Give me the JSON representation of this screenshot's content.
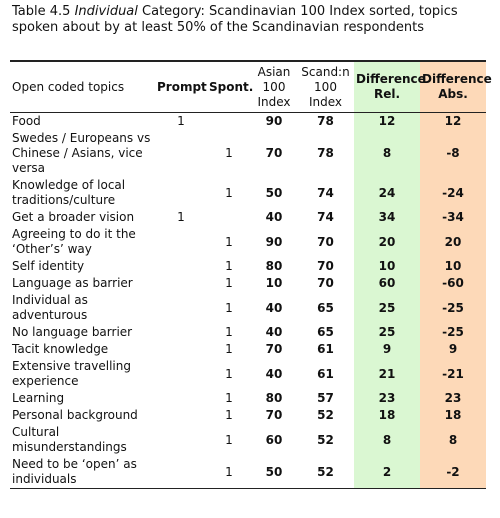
{
  "caption": {
    "label": "Table 4.5",
    "italic": "Individual",
    "text": "Category: Scandinavian 100 Index sorted, topics spoken about by at least 50% of the Scandinavian respondents"
  },
  "table": {
    "header": [
      "Open coded topics",
      "Prompt",
      "Spont.",
      "Asian 100 Index",
      "Scand:n 100 Index",
      "Difference Rel.",
      "Difference Abs."
    ],
    "rows": [
      [
        "Food",
        1,
        null,
        90,
        78,
        12,
        12
      ],
      [
        "Swedes / Europeans vs Chinese / Asians, vice versa",
        null,
        1,
        70,
        78,
        8,
        -8
      ],
      [
        "Knowledge of local traditions/culture",
        null,
        1,
        50,
        74,
        24,
        -24
      ],
      [
        "Get a broader vision",
        1,
        null,
        40,
        74,
        34,
        -34
      ],
      [
        "Agreeing to do it the ‘Other’s’ way",
        null,
        1,
        90,
        70,
        20,
        20
      ],
      [
        "Self identity",
        null,
        1,
        80,
        70,
        10,
        10
      ],
      [
        "Language as barrier",
        null,
        1,
        10,
        70,
        60,
        -60
      ],
      [
        "Individual as adventurous",
        null,
        1,
        40,
        65,
        25,
        -25
      ],
      [
        "No language barrier",
        null,
        1,
        40,
        65,
        25,
        -25
      ],
      [
        "Tacit knowledge",
        null,
        1,
        70,
        61,
        9,
        9
      ],
      [
        "Extensive travelling experience",
        null,
        1,
        40,
        61,
        21,
        -21
      ],
      [
        "Learning",
        null,
        1,
        80,
        57,
        23,
        23
      ],
      [
        "Personal background",
        null,
        1,
        70,
        52,
        18,
        18
      ],
      [
        "Cultural misunderstandings",
        null,
        1,
        60,
        52,
        8,
        8
      ],
      [
        "Need to be ‘open’ as individuals",
        null,
        1,
        50,
        52,
        2,
        -2
      ]
    ]
  }
}
